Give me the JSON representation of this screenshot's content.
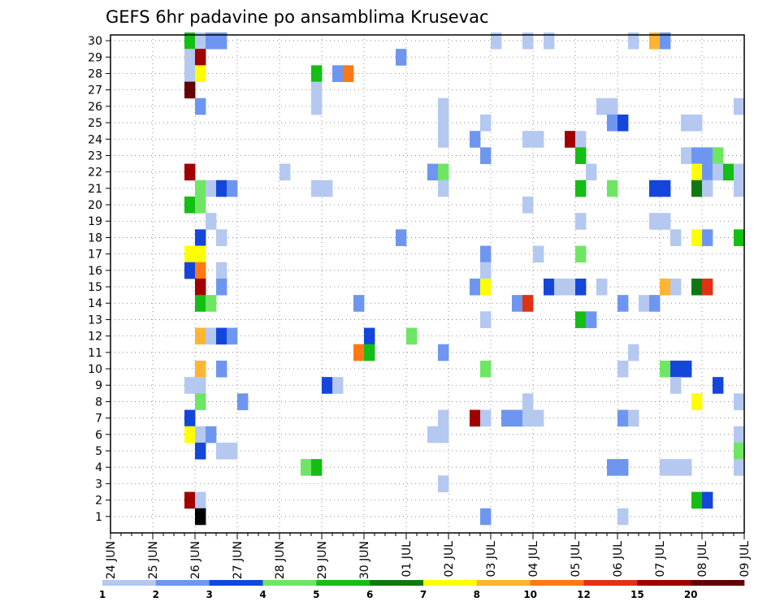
{
  "chart_data": {
    "type": "heatmap",
    "title": "GEFS 6hr padavine po ansamblima Krusevac",
    "x_tick_labels": [
      "24 JUN",
      "25 JUN",
      "26 JUN",
      "27 JUN",
      "28 JUN",
      "29 JUN",
      "30 JUN",
      "01 JUL",
      "02 JUL",
      "03 JUL",
      "04 JUL",
      "05 JUL",
      "06 JUL",
      "07 JUL",
      "08 JUL",
      "09 JUL"
    ],
    "y_tick_labels": [
      "1",
      "2",
      "3",
      "4",
      "5",
      "6",
      "7",
      "8",
      "9",
      "10",
      "11",
      "12",
      "13",
      "14",
      "15",
      "16",
      "17",
      "18",
      "19",
      "20",
      "21",
      "22",
      "23",
      "24",
      "25",
      "26",
      "27",
      "28",
      "29",
      "30"
    ],
    "xlim_steps": [
      0,
      60
    ],
    "ylim": [
      0,
      30
    ],
    "grid": true,
    "colorbar": {
      "labels": [
        "1",
        "2",
        "3",
        "4",
        "5",
        "6",
        "7",
        "8",
        "10",
        "12",
        "15",
        "20"
      ],
      "colors": [
        "#b4c8f0",
        "#6e96f0",
        "#1446dc",
        "#6ee664",
        "#14be14",
        "#107810",
        "#ffff00",
        "#ffb432",
        "#ff7814",
        "#e13214",
        "#a00000",
        "#640000"
      ]
    },
    "steps_per_day": 4,
    "cells": [
      [
        7,
        30,
        5
      ],
      [
        8,
        30,
        1
      ],
      [
        9,
        30,
        2
      ],
      [
        10,
        30,
        2
      ],
      [
        36,
        30,
        1
      ],
      [
        39,
        30,
        1
      ],
      [
        41,
        30,
        1
      ],
      [
        49,
        30,
        1
      ],
      [
        51,
        30,
        8
      ],
      [
        52,
        30,
        2
      ],
      [
        7,
        29,
        1
      ],
      [
        8,
        29,
        11
      ],
      [
        27,
        29,
        2
      ],
      [
        7,
        28,
        1
      ],
      [
        8,
        28,
        7
      ],
      [
        19,
        28,
        5
      ],
      [
        21,
        28,
        2
      ],
      [
        22,
        28,
        9
      ],
      [
        7,
        27,
        12
      ],
      [
        19,
        27,
        1
      ],
      [
        8,
        26,
        2
      ],
      [
        19,
        26,
        1
      ],
      [
        31,
        26,
        1
      ],
      [
        46,
        26,
        1
      ],
      [
        47,
        26,
        1
      ],
      [
        59,
        26,
        1
      ],
      [
        31,
        25,
        1
      ],
      [
        35,
        25,
        1
      ],
      [
        47,
        25,
        2
      ],
      [
        48,
        25,
        3
      ],
      [
        54,
        25,
        1
      ],
      [
        55,
        25,
        1
      ],
      [
        31,
        24,
        1
      ],
      [
        34,
        24,
        2
      ],
      [
        39,
        24,
        1
      ],
      [
        40,
        24,
        1
      ],
      [
        43,
        24,
        11
      ],
      [
        44,
        24,
        1
      ],
      [
        35,
        23,
        2
      ],
      [
        44,
        23,
        5
      ],
      [
        54,
        23,
        1
      ],
      [
        55,
        23,
        2
      ],
      [
        56,
        23,
        2
      ],
      [
        57,
        23,
        4
      ],
      [
        7,
        22,
        11
      ],
      [
        16,
        22,
        1
      ],
      [
        30,
        22,
        2
      ],
      [
        31,
        22,
        4
      ],
      [
        45,
        22,
        1
      ],
      [
        55,
        22,
        7
      ],
      [
        56,
        22,
        2
      ],
      [
        57,
        22,
        1
      ],
      [
        58,
        22,
        5
      ],
      [
        59,
        22,
        1
      ],
      [
        8,
        21,
        4
      ],
      [
        9,
        21,
        1
      ],
      [
        10,
        21,
        3
      ],
      [
        11,
        21,
        2
      ],
      [
        19,
        21,
        1
      ],
      [
        20,
        21,
        1
      ],
      [
        31,
        21,
        1
      ],
      [
        44,
        21,
        5
      ],
      [
        47,
        21,
        4
      ],
      [
        51,
        21,
        3
      ],
      [
        52,
        21,
        3
      ],
      [
        55,
        21,
        6
      ],
      [
        56,
        21,
        1
      ],
      [
        59,
        21,
        1
      ],
      [
        7,
        20,
        5
      ],
      [
        8,
        20,
        4
      ],
      [
        39,
        20,
        1
      ],
      [
        9,
        19,
        1
      ],
      [
        44,
        19,
        1
      ],
      [
        51,
        19,
        1
      ],
      [
        52,
        19,
        1
      ],
      [
        8,
        18,
        3
      ],
      [
        10,
        18,
        1
      ],
      [
        27,
        18,
        2
      ],
      [
        53,
        18,
        1
      ],
      [
        55,
        18,
        7
      ],
      [
        56,
        18,
        2
      ],
      [
        59,
        18,
        5
      ],
      [
        7,
        17,
        7
      ],
      [
        8,
        17,
        7
      ],
      [
        35,
        17,
        2
      ],
      [
        40,
        17,
        1
      ],
      [
        44,
        17,
        4
      ],
      [
        7,
        16,
        3
      ],
      [
        8,
        16,
        9
      ],
      [
        10,
        16,
        1
      ],
      [
        35,
        16,
        1
      ],
      [
        8,
        15,
        11
      ],
      [
        10,
        15,
        2
      ],
      [
        34,
        15,
        2
      ],
      [
        35,
        15,
        7
      ],
      [
        41,
        15,
        3
      ],
      [
        42,
        15,
        1
      ],
      [
        43,
        15,
        1
      ],
      [
        44,
        15,
        3
      ],
      [
        46,
        15,
        1
      ],
      [
        52,
        15,
        8
      ],
      [
        53,
        15,
        1
      ],
      [
        55,
        15,
        6
      ],
      [
        56,
        15,
        10
      ],
      [
        8,
        14,
        5
      ],
      [
        9,
        14,
        4
      ],
      [
        23,
        14,
        2
      ],
      [
        38,
        14,
        2
      ],
      [
        39,
        14,
        10
      ],
      [
        48,
        14,
        2
      ],
      [
        50,
        14,
        1
      ],
      [
        51,
        14,
        2
      ],
      [
        35,
        13,
        1
      ],
      [
        44,
        13,
        5
      ],
      [
        45,
        13,
        2
      ],
      [
        8,
        12,
        8
      ],
      [
        9,
        12,
        1
      ],
      [
        10,
        12,
        3
      ],
      [
        11,
        12,
        2
      ],
      [
        24,
        12,
        3
      ],
      [
        28,
        12,
        4
      ],
      [
        23,
        11,
        9
      ],
      [
        24,
        11,
        5
      ],
      [
        31,
        11,
        2
      ],
      [
        49,
        11,
        1
      ],
      [
        8,
        10,
        8
      ],
      [
        10,
        10,
        2
      ],
      [
        35,
        10,
        4
      ],
      [
        48,
        10,
        1
      ],
      [
        52,
        10,
        4
      ],
      [
        53,
        10,
        3
      ],
      [
        54,
        10,
        3
      ],
      [
        7,
        9,
        1
      ],
      [
        8,
        9,
        1
      ],
      [
        20,
        9,
        3
      ],
      [
        21,
        9,
        1
      ],
      [
        53,
        9,
        1
      ],
      [
        57,
        9,
        3
      ],
      [
        8,
        8,
        4
      ],
      [
        12,
        8,
        2
      ],
      [
        39,
        8,
        1
      ],
      [
        55,
        8,
        7
      ],
      [
        59,
        8,
        1
      ],
      [
        7,
        7,
        3
      ],
      [
        31,
        7,
        1
      ],
      [
        34,
        7,
        11
      ],
      [
        35,
        7,
        1
      ],
      [
        37,
        7,
        2
      ],
      [
        38,
        7,
        2
      ],
      [
        39,
        7,
        1
      ],
      [
        40,
        7,
        1
      ],
      [
        48,
        7,
        2
      ],
      [
        49,
        7,
        1
      ],
      [
        7,
        6,
        7
      ],
      [
        8,
        6,
        1
      ],
      [
        9,
        6,
        2
      ],
      [
        30,
        6,
        1
      ],
      [
        31,
        6,
        1
      ],
      [
        59,
        6,
        1
      ],
      [
        8,
        5,
        3
      ],
      [
        10,
        5,
        1
      ],
      [
        11,
        5,
        1
      ],
      [
        59,
        5,
        4
      ],
      [
        18,
        4,
        4
      ],
      [
        19,
        4,
        5
      ],
      [
        47,
        4,
        2
      ],
      [
        48,
        4,
        2
      ],
      [
        52,
        4,
        1
      ],
      [
        53,
        4,
        1
      ],
      [
        54,
        4,
        1
      ],
      [
        59,
        4,
        1
      ],
      [
        31,
        3,
        1
      ],
      [
        7,
        2,
        11
      ],
      [
        8,
        2,
        1
      ],
      [
        55,
        2,
        5
      ],
      [
        56,
        2,
        3
      ],
      [
        8,
        1,
        13
      ],
      [
        35,
        1,
        2
      ],
      [
        48,
        1,
        1
      ]
    ]
  }
}
